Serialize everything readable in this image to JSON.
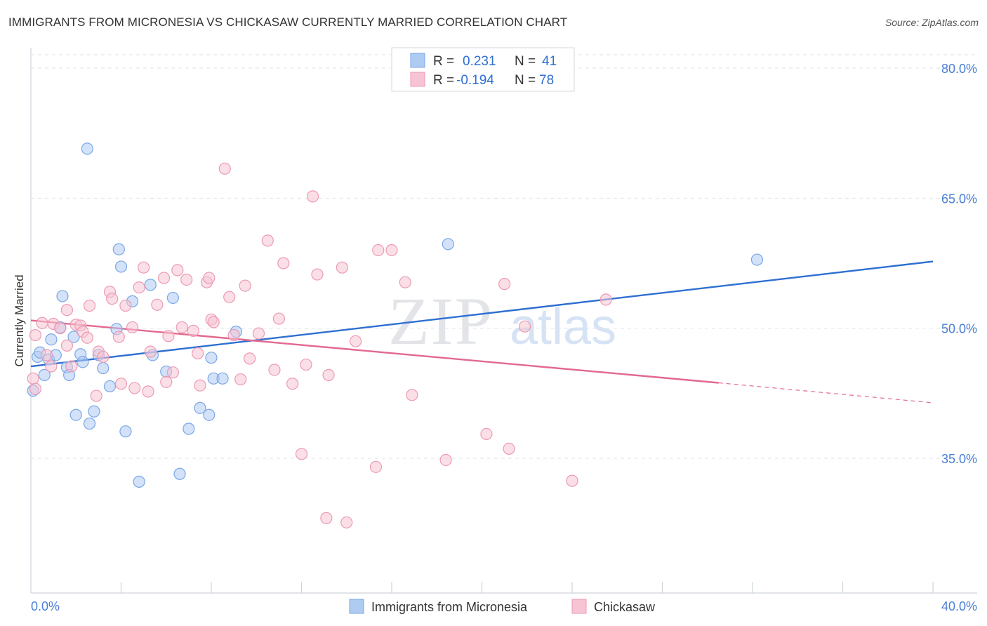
{
  "header": {
    "title": "IMMIGRANTS FROM MICRONESIA VS CHICKASAW CURRENTLY MARRIED CORRELATION CHART",
    "source": "Source: ZipAtlas.com"
  },
  "watermark": {
    "zip": "ZIP",
    "atlas": "atlas"
  },
  "colors": {
    "blue_fill": "#aecbf2",
    "blue_stroke": "#7aa7e6",
    "blue_line": "#2e6fd2",
    "pink_fill": "#f7c4d3",
    "pink_stroke": "#ec9ab4",
    "pink_line": "#e3698f",
    "label_blue": "#4a7fd4",
    "grid": "#dde3ea"
  },
  "legend": {
    "rows": [
      {
        "r_label": "R =",
        "r_value": "0.231",
        "n_label": "N =",
        "n_value": "41",
        "series": "blue"
      },
      {
        "r_label": "R =",
        "r_value": "-0.194",
        "n_label": "N =",
        "n_value": "78",
        "series": "pink"
      }
    ]
  },
  "bottom_legend": [
    {
      "label": "Immigrants from Micronesia",
      "series": "blue"
    },
    {
      "label": "Chickasaw",
      "series": "pink"
    }
  ],
  "chart_data": {
    "type": "scatter",
    "xlabel": "",
    "ylabel": "Currently Married",
    "xlim": [
      0,
      40
    ],
    "ylim": [
      21,
      82.5
    ],
    "x_tick_labels": [
      {
        "value": 0,
        "label": "0.0%"
      },
      {
        "value": 40,
        "label": "40.0%"
      }
    ],
    "x_minor_ticks": [
      4,
      8,
      12,
      16,
      20,
      24,
      28,
      32,
      36,
      40
    ],
    "y_ticks": [
      {
        "value": 80,
        "label": "80.0%"
      },
      {
        "value": 65,
        "label": "65.0%"
      },
      {
        "value": 50,
        "label": "50.0%"
      },
      {
        "value": 35,
        "label": "35.0%"
      }
    ],
    "grid": "horizontal dashed",
    "legend_placement": "top-center",
    "series": [
      {
        "name": "Immigrants from Micronesia",
        "color": "blue",
        "trend": {
          "x": [
            0,
            40
          ],
          "y": [
            45.6,
            57.7
          ]
        },
        "points": [
          [
            0.1,
            42.8
          ],
          [
            0.3,
            46.7
          ],
          [
            0.4,
            47.2
          ],
          [
            0.6,
            44.6
          ],
          [
            0.8,
            46.4
          ],
          [
            0.9,
            48.7
          ],
          [
            1.1,
            46.9
          ],
          [
            1.3,
            50.1
          ],
          [
            1.4,
            53.7
          ],
          [
            1.6,
            45.5
          ],
          [
            1.7,
            44.6
          ],
          [
            1.9,
            49.0
          ],
          [
            2.0,
            40.0
          ],
          [
            2.2,
            47.0
          ],
          [
            2.3,
            46.1
          ],
          [
            2.5,
            70.7
          ],
          [
            2.6,
            39.0
          ],
          [
            2.8,
            40.4
          ],
          [
            3.0,
            46.9
          ],
          [
            3.2,
            45.4
          ],
          [
            3.5,
            43.3
          ],
          [
            3.8,
            49.9
          ],
          [
            3.9,
            59.1
          ],
          [
            4.0,
            57.1
          ],
          [
            4.2,
            38.1
          ],
          [
            4.5,
            53.1
          ],
          [
            4.8,
            32.3
          ],
          [
            5.3,
            55.0
          ],
          [
            5.4,
            46.9
          ],
          [
            6.0,
            45.0
          ],
          [
            6.3,
            53.5
          ],
          [
            6.6,
            33.2
          ],
          [
            7.0,
            38.4
          ],
          [
            7.5,
            40.8
          ],
          [
            7.9,
            40.0
          ],
          [
            8.0,
            46.6
          ],
          [
            8.1,
            44.2
          ],
          [
            8.5,
            44.2
          ],
          [
            9.1,
            49.6
          ],
          [
            18.5,
            59.7
          ],
          [
            32.2,
            57.9
          ]
        ]
      },
      {
        "name": "Chickasaw",
        "color": "pink",
        "trend": {
          "x": [
            0,
            30.5
          ],
          "y": [
            50.9,
            43.7
          ]
        },
        "trend_dashed": {
          "x": [
            30.5,
            40
          ],
          "y": [
            43.7,
            41.4
          ]
        },
        "points": [
          [
            0.1,
            44.2
          ],
          [
            0.2,
            49.2
          ],
          [
            0.5,
            50.6
          ],
          [
            0.7,
            46.9
          ],
          [
            0.9,
            45.6
          ],
          [
            1.0,
            50.5
          ],
          [
            1.3,
            50.0
          ],
          [
            1.6,
            48.0
          ],
          [
            1.6,
            52.1
          ],
          [
            1.8,
            45.6
          ],
          [
            2.0,
            50.4
          ],
          [
            2.2,
            50.3
          ],
          [
            2.3,
            49.6
          ],
          [
            2.5,
            48.9
          ],
          [
            2.6,
            52.6
          ],
          [
            2.9,
            42.2
          ],
          [
            3.0,
            47.3
          ],
          [
            3.2,
            46.7
          ],
          [
            3.5,
            54.2
          ],
          [
            3.6,
            53.4
          ],
          [
            3.9,
            49.0
          ],
          [
            4.0,
            43.6
          ],
          [
            4.2,
            52.6
          ],
          [
            4.5,
            50.1
          ],
          [
            4.6,
            43.1
          ],
          [
            4.8,
            54.7
          ],
          [
            5.0,
            57.0
          ],
          [
            5.2,
            42.7
          ],
          [
            5.3,
            47.3
          ],
          [
            5.6,
            52.7
          ],
          [
            5.9,
            55.8
          ],
          [
            6.0,
            43.8
          ],
          [
            6.1,
            49.1
          ],
          [
            6.3,
            44.9
          ],
          [
            6.5,
            56.7
          ],
          [
            6.7,
            50.1
          ],
          [
            6.9,
            55.6
          ],
          [
            7.2,
            49.7
          ],
          [
            7.4,
            47.1
          ],
          [
            7.5,
            43.4
          ],
          [
            7.8,
            55.3
          ],
          [
            7.9,
            55.8
          ],
          [
            8.0,
            51.0
          ],
          [
            8.1,
            50.7
          ],
          [
            8.6,
            68.4
          ],
          [
            8.8,
            53.6
          ],
          [
            9.0,
            49.2
          ],
          [
            9.3,
            44.1
          ],
          [
            9.5,
            54.9
          ],
          [
            9.7,
            46.5
          ],
          [
            10.1,
            49.4
          ],
          [
            10.5,
            60.1
          ],
          [
            10.8,
            45.2
          ],
          [
            11.0,
            51.1
          ],
          [
            11.2,
            57.5
          ],
          [
            11.6,
            43.6
          ],
          [
            12.0,
            35.5
          ],
          [
            12.2,
            45.8
          ],
          [
            12.5,
            65.2
          ],
          [
            12.7,
            56.2
          ],
          [
            13.1,
            28.1
          ],
          [
            13.2,
            44.6
          ],
          [
            13.8,
            57.0
          ],
          [
            14.0,
            27.6
          ],
          [
            14.4,
            48.5
          ],
          [
            15.3,
            34.0
          ],
          [
            15.4,
            59.0
          ],
          [
            16.0,
            59.0
          ],
          [
            16.6,
            55.3
          ],
          [
            16.9,
            42.3
          ],
          [
            18.4,
            34.8
          ],
          [
            20.2,
            37.8
          ],
          [
            21.0,
            55.1
          ],
          [
            21.2,
            36.1
          ],
          [
            21.9,
            50.2
          ],
          [
            24.0,
            32.4
          ],
          [
            25.5,
            53.3
          ],
          [
            0.2,
            43.0
          ]
        ]
      }
    ]
  }
}
